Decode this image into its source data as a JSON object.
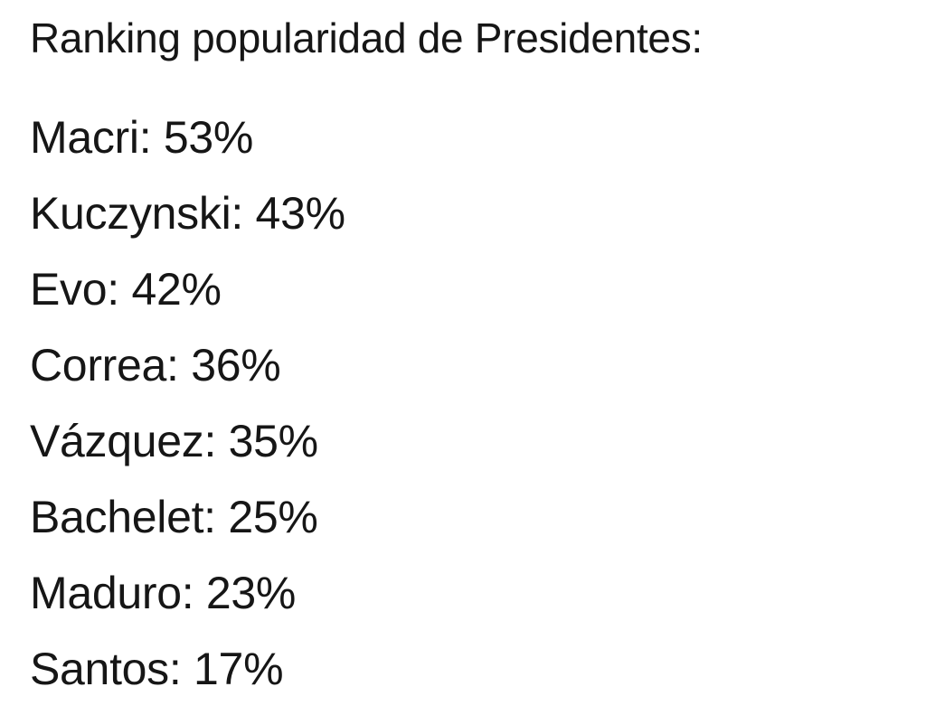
{
  "title": "Ranking popularidad de Presidentes:",
  "rows": [
    {
      "text": "Macri: 53%"
    },
    {
      "text": "Kuczynski: 43%"
    },
    {
      "text": "Evo: 42%"
    },
    {
      "text": "Correa: 36%"
    },
    {
      "text": "Vázquez: 35%"
    },
    {
      "text": "Bachelet: 25%"
    },
    {
      "text": "Maduro: 23%"
    },
    {
      "text": "Santos: 17%"
    }
  ]
}
